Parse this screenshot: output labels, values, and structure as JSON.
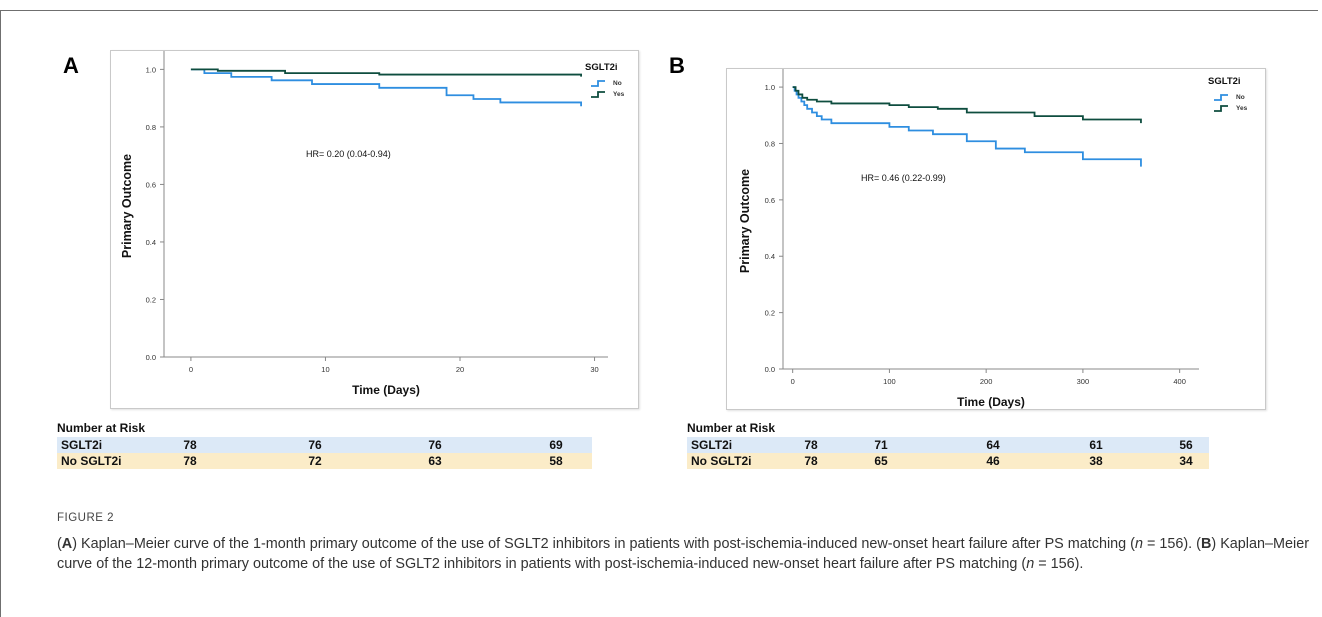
{
  "figure_label": "FIGURE 2",
  "caption": {
    "part_a_letter": "A",
    "part_a_text": "Kaplan–Meier curve of the 1-month primary outcome of the use of SGLT2 inhibitors in patients with post-ischemia-induced new-onset heart failure after PS matching (",
    "part_b_letter": "B",
    "part_b_text": "Kaplan–Meier curve of the 12-month primary outcome of the use of SGLT2 inhibitors in patients with post-ischemia-induced new-onset heart failure after PS matching (",
    "n_italic": "n",
    "n_value": " = 156)."
  },
  "colors": {
    "no": "#2e8ee0",
    "yes": "#0e4d3f",
    "axis": "#888888"
  },
  "panels": [
    {
      "letter": "A",
      "risk_table": {
        "title": "Number at Risk",
        "rows": [
          {
            "label": "SGLT2i",
            "values": [
              "78",
              "76",
              "76",
              "69"
            ]
          },
          {
            "label": "No SGLT2i",
            "values": [
              "78",
              "72",
              "63",
              "58"
            ]
          }
        ]
      }
    },
    {
      "letter": "B",
      "risk_table": {
        "title": "Number at Risk",
        "rows": [
          {
            "label": "SGLT2i",
            "values": [
              "78",
              "71",
              "64",
              "61",
              "56"
            ]
          },
          {
            "label": "No SGLT2i",
            "values": [
              "78",
              "65",
              "46",
              "38",
              "34"
            ]
          }
        ]
      }
    }
  ],
  "chart_data": [
    {
      "type": "line",
      "step": true,
      "xlabel": "Time (Days)",
      "ylabel": "Primary Outcome",
      "xlim": [
        -2,
        31
      ],
      "ylim": [
        0,
        1.05
      ],
      "xticks": [
        0,
        10,
        20,
        30
      ],
      "yticks": [
        "0.0",
        "0.2",
        "0.4",
        "0.6",
        "0.8",
        "1.0"
      ],
      "legend": {
        "title": "SGLT2i",
        "position": "top-right"
      },
      "annotation": "HR= 0.20 (0.04-0.94)",
      "series": [
        {
          "name": "No",
          "color_key": "no",
          "x": [
            0,
            1,
            3,
            6,
            9,
            14,
            19,
            21,
            23,
            29
          ],
          "y": [
            1.0,
            0.987,
            0.974,
            0.962,
            0.949,
            0.936,
            0.91,
            0.897,
            0.885,
            0.872
          ]
        },
        {
          "name": "Yes",
          "color_key": "yes",
          "x": [
            0,
            2,
            7,
            14,
            29
          ],
          "y": [
            1.0,
            0.995,
            0.987,
            0.982,
            0.975
          ]
        }
      ]
    },
    {
      "type": "line",
      "step": true,
      "xlabel": "Time (Days)",
      "ylabel": "Primary Outcome",
      "xlim": [
        -10,
        420
      ],
      "ylim": [
        0,
        1.05
      ],
      "xticks": [
        0,
        100,
        200,
        300,
        400
      ],
      "yticks": [
        "0.0",
        "0.2",
        "0.4",
        "0.6",
        "0.8",
        "1.0"
      ],
      "legend": {
        "title": "SGLT2i",
        "position": "top-right"
      },
      "annotation": "HR= 0.46 (0.22-0.99)",
      "series": [
        {
          "name": "No",
          "color_key": "no",
          "x": [
            0,
            2,
            4,
            6,
            9,
            12,
            15,
            20,
            25,
            30,
            40,
            100,
            120,
            145,
            180,
            210,
            240,
            300,
            360
          ],
          "y": [
            1.0,
            0.987,
            0.974,
            0.962,
            0.949,
            0.936,
            0.923,
            0.91,
            0.897,
            0.885,
            0.872,
            0.859,
            0.846,
            0.833,
            0.808,
            0.782,
            0.769,
            0.744,
            0.718
          ]
        },
        {
          "name": "Yes",
          "color_key": "yes",
          "x": [
            0,
            3,
            6,
            10,
            15,
            25,
            40,
            100,
            120,
            150,
            180,
            250,
            300,
            360
          ],
          "y": [
            1.0,
            0.987,
            0.974,
            0.962,
            0.955,
            0.949,
            0.942,
            0.936,
            0.929,
            0.923,
            0.91,
            0.897,
            0.885,
            0.872
          ]
        }
      ]
    }
  ]
}
